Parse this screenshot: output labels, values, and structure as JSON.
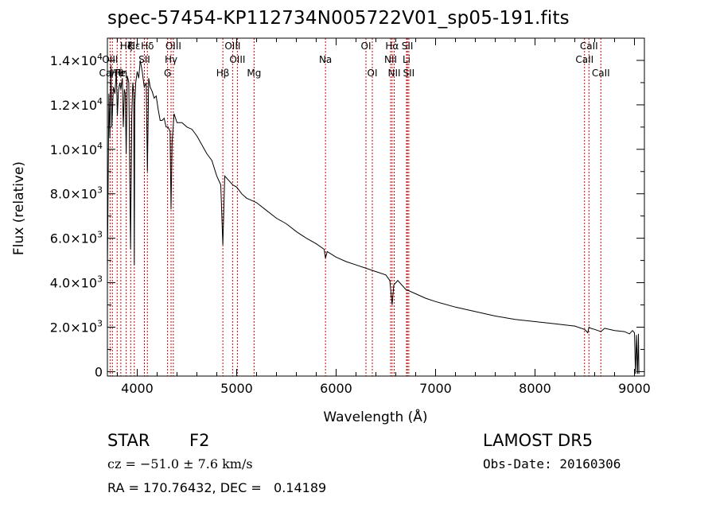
{
  "chart_data": {
    "type": "line",
    "title": "spec-57454-KP112734N005722V01_sp05-191.fits",
    "xlabel": "Wavelength (Å)",
    "ylabel": "Flux (relative)",
    "xlim": [
      3700,
      9100
    ],
    "ylim": [
      -200,
      15000
    ],
    "x_ticks": [
      4000,
      5000,
      6000,
      7000,
      8000,
      9000
    ],
    "y_ticks": [
      {
        "value": 0,
        "mant": "0",
        "exp": ""
      },
      {
        "value": 2000,
        "mant": "2.0",
        "exp": "3"
      },
      {
        "value": 4000,
        "mant": "4.0",
        "exp": "3"
      },
      {
        "value": 6000,
        "mant": "6.0",
        "exp": "3"
      },
      {
        "value": 8000,
        "mant": "8.0",
        "exp": "3"
      },
      {
        "value": 10000,
        "mant": "1.0",
        "exp": "4"
      },
      {
        "value": 12000,
        "mant": "1.2",
        "exp": "4"
      },
      {
        "value": 14000,
        "mant": "1.4",
        "exp": "4"
      }
    ],
    "series": [
      {
        "color": "#000000",
        "x": [
          3700,
          3715,
          3725,
          3735,
          3745,
          3760,
          3775,
          3790,
          3800,
          3810,
          3825,
          3835,
          3850,
          3860,
          3870,
          3880,
          3889,
          3900,
          3915,
          3933,
          3945,
          3955,
          3965,
          3970,
          3975,
          3985,
          4000,
          4015,
          4030,
          4050,
          4070,
          4090,
          4102,
          4115,
          4130,
          4150,
          4170,
          4190,
          4210,
          4230,
          4250,
          4270,
          4290,
          4310,
          4330,
          4340,
          4350,
          4370,
          4400,
          4450,
          4500,
          4550,
          4600,
          4650,
          4700,
          4750,
          4800,
          4840,
          4861,
          4880,
          4920,
          4960,
          5000,
          5050,
          5100,
          5150,
          5200,
          5300,
          5400,
          5500,
          5600,
          5700,
          5800,
          5880,
          5893,
          5910,
          6000,
          6100,
          6200,
          6300,
          6400,
          6500,
          6540,
          6563,
          6580,
          6620,
          6700,
          6800,
          6900,
          7000,
          7200,
          7400,
          7600,
          7800,
          8000,
          8200,
          8400,
          8498,
          8530,
          8542,
          8560,
          8600,
          8662,
          8700,
          8800,
          8900,
          8950,
          8980,
          9000,
          9010,
          9020,
          9030,
          9040,
          9045
        ],
        "y": [
          4500,
          12500,
          10500,
          13800,
          11000,
          12800,
          12500,
          13500,
          11500,
          12600,
          13000,
          12700,
          13200,
          11000,
          12700,
          12500,
          9800,
          13300,
          13000,
          5500,
          11500,
          13000,
          12500,
          4800,
          12000,
          13000,
          13500,
          13200,
          14000,
          13500,
          12800,
          13000,
          9000,
          13200,
          12800,
          12600,
          12300,
          12400,
          11800,
          11300,
          11300,
          11400,
          11000,
          11000,
          10800,
          7300,
          10300,
          11600,
          11200,
          11200,
          11000,
          10900,
          10600,
          10200,
          9800,
          9500,
          8800,
          8400,
          5700,
          8800,
          8600,
          8400,
          8300,
          8000,
          7800,
          7700,
          7600,
          7250,
          6900,
          6650,
          6300,
          6000,
          5750,
          5500,
          5100,
          5400,
          5150,
          4950,
          4800,
          4650,
          4500,
          4350,
          4100,
          3000,
          3900,
          4100,
          3700,
          3500,
          3300,
          3150,
          2900,
          2700,
          2500,
          2350,
          2250,
          2150,
          2050,
          1900,
          1750,
          2000,
          1950,
          1900,
          1800,
          1950,
          1850,
          1800,
          1700,
          1850,
          1750,
          -100,
          1650,
          -100,
          1700,
          -100
        ]
      }
    ],
    "lines": [
      {
        "label": "Hζ",
        "wavelength": 3889,
        "row": 1
      },
      {
        "label": "OIII",
        "wavelength": 3727,
        "row": 2
      },
      {
        "label": "Ca/Fe",
        "wavelength": 3750,
        "row": 3
      },
      {
        "label": "Hθ",
        "wavelength": 3798,
        "row": 3
      },
      {
        "label": "Hη",
        "wavelength": 3835,
        "row": 3
      },
      {
        "label": "K",
        "wavelength": 3934,
        "row": 1
      },
      {
        "label": "Hε",
        "wavelength": 3970,
        "row": 1
      },
      {
        "label": "SII",
        "wavelength": 4072,
        "row": 2
      },
      {
        "label": "Hδ",
        "wavelength": 4102,
        "row": 1
      },
      {
        "label": "OIII",
        "wavelength": 4363,
        "row": 1
      },
      {
        "label": "Hγ",
        "wavelength": 4340,
        "row": 2
      },
      {
        "label": "G",
        "wavelength": 4305,
        "row": 3
      },
      {
        "label": "Hβ",
        "wavelength": 4861,
        "row": 3
      },
      {
        "label": "OIII",
        "wavelength": 4959,
        "row": 1
      },
      {
        "label": "OIII",
        "wavelength": 5007,
        "row": 2
      },
      {
        "label": "Mg",
        "wavelength": 5175,
        "row": 3
      },
      {
        "label": "Na",
        "wavelength": 5893,
        "row": 2
      },
      {
        "label": "OI",
        "wavelength": 6300,
        "row": 1
      },
      {
        "label": "OI",
        "wavelength": 6364,
        "row": 3
      },
      {
        "label": "Hα",
        "wavelength": 6563,
        "row": 1
      },
      {
        "label": "NII",
        "wavelength": 6548,
        "row": 2
      },
      {
        "label": "NII",
        "wavelength": 6584,
        "row": 3
      },
      {
        "label": "SII",
        "wavelength": 6717,
        "row": 1
      },
      {
        "label": "Li",
        "wavelength": 6708,
        "row": 2
      },
      {
        "label": "SII",
        "wavelength": 6731,
        "row": 3
      },
      {
        "label": "CaII",
        "wavelength": 8542,
        "row": 1
      },
      {
        "label": "CaII",
        "wavelength": 8498,
        "row": 2
      },
      {
        "label": "CaII",
        "wavelength": 8662,
        "row": 3
      }
    ]
  },
  "info": {
    "class": "STAR",
    "subclass": "F2",
    "survey": "LAMOST DR5",
    "cz": "cz = −51.0 ± 7.6 km/s",
    "obs_date": "Obs-Date: 20160306",
    "radec": "RA = 170.76432, DEC =   0.14189"
  }
}
